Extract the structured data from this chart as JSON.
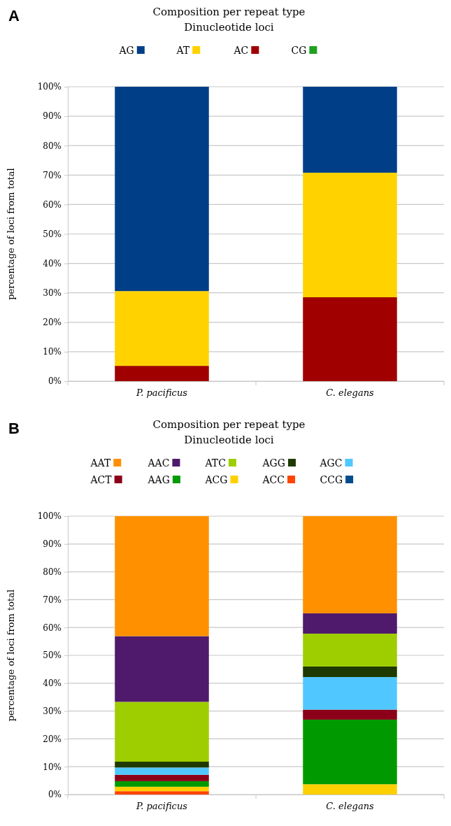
{
  "chart_data": [
    {
      "type": "bar",
      "stacked": true,
      "title": "Composition per repeat type",
      "subtitle": "Dinucleotide loci",
      "ylabel": "percentage of loci from total",
      "annotations": [
        "A"
      ],
      "categories": [
        "P. pacificus",
        "C. elegans"
      ],
      "ylim": [
        0,
        100
      ],
      "yticks": [
        {
          "value": 0,
          "label": "0%"
        },
        {
          "value": 10,
          "label": "10%"
        },
        {
          "value": 20,
          "label": "20%"
        },
        {
          "value": 30,
          "label": "30%"
        },
        {
          "value": 40,
          "label": "40%"
        },
        {
          "value": 50,
          "label": "50%"
        },
        {
          "value": 60,
          "label": "60%"
        },
        {
          "value": 70,
          "label": "70%"
        },
        {
          "value": 80,
          "label": "80%"
        },
        {
          "value": 90,
          "label": "90%"
        },
        {
          "value": 100,
          "label": "100%"
        }
      ],
      "grid": "y",
      "legend": "top",
      "series": [
        {
          "name": "CG",
          "color": "#1fa01f",
          "values": [
            0,
            0
          ]
        },
        {
          "name": "AC",
          "color": "#a00000",
          "values": [
            5.2,
            28.5
          ]
        },
        {
          "name": "AT",
          "color": "#ffd200",
          "values": [
            25.4,
            42.3
          ]
        },
        {
          "name": "AG",
          "color": "#003f87",
          "values": [
            69.4,
            29.2
          ]
        }
      ]
    },
    {
      "type": "bar",
      "stacked": true,
      "title": "Composition per repeat type",
      "subtitle": "Dinucleotide loci",
      "ylabel": "percentage of loci from total",
      "annotations": [
        "B"
      ],
      "categories": [
        "P. pacificus",
        "C. elegans"
      ],
      "ylim": [
        0,
        100
      ],
      "yticks": [
        {
          "value": 0,
          "label": "0%"
        },
        {
          "value": 10,
          "label": "10%"
        },
        {
          "value": 20,
          "label": "20%"
        },
        {
          "value": 30,
          "label": "30%"
        },
        {
          "value": 40,
          "label": "40%"
        },
        {
          "value": 50,
          "label": "50%"
        },
        {
          "value": 60,
          "label": "60%"
        },
        {
          "value": 70,
          "label": "70%"
        },
        {
          "value": 80,
          "label": "80%"
        },
        {
          "value": 90,
          "label": "90%"
        },
        {
          "value": 100,
          "label": "100%"
        }
      ],
      "grid": "y",
      "legend": "top",
      "series": [
        {
          "name": "CCG",
          "color": "#004c8c",
          "values": [
            0,
            0
          ]
        },
        {
          "name": "ACC",
          "color": "#ff4500",
          "values": [
            1.2,
            0
          ]
        },
        {
          "name": "ACG",
          "color": "#ffd000",
          "values": [
            1.6,
            3.7
          ]
        },
        {
          "name": "AAG",
          "color": "#009a00",
          "values": [
            2.0,
            23.2
          ]
        },
        {
          "name": "ACT",
          "color": "#8b0018",
          "values": [
            2.3,
            3.6
          ]
        },
        {
          "name": "AGC",
          "color": "#50c8ff",
          "values": [
            2.6,
            11.7
          ]
        },
        {
          "name": "AGG",
          "color": "#1e3a00",
          "values": [
            2.1,
            3.8
          ]
        },
        {
          "name": "ATC",
          "color": "#9ece00",
          "values": [
            21.5,
            11.8
          ]
        },
        {
          "name": "AAC",
          "color": "#4f1a6b",
          "values": [
            23.6,
            7.3
          ]
        },
        {
          "name": "AAT",
          "color": "#ff9000",
          "values": [
            43.1,
            34.9
          ]
        }
      ]
    }
  ]
}
